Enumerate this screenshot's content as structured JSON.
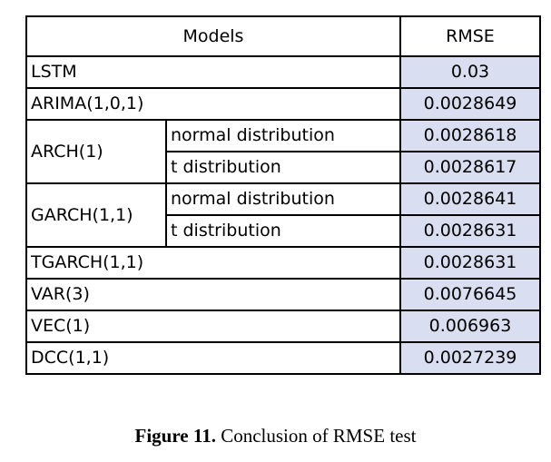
{
  "table": {
    "header": {
      "models": "Models",
      "rmse": "RMSE"
    },
    "rows": [
      {
        "model": "LSTM",
        "variant": "",
        "rmse": "0.03"
      },
      {
        "model": "ARIMA(1,0,1)",
        "variant": "",
        "rmse": "0.0028649"
      },
      {
        "model": "ARCH(1)",
        "variant": "normal distribution",
        "rmse": "0.0028618"
      },
      {
        "model": "",
        "variant": "t distribution",
        "rmse": "0.0028617"
      },
      {
        "model": "GARCH(1,1)",
        "variant": "normal distribution",
        "rmse": "0.0028641"
      },
      {
        "model": "",
        "variant": "t distribution",
        "rmse": "0.0028631"
      },
      {
        "model": "TGARCH(1,1)",
        "variant": "",
        "rmse": "0.0028631"
      },
      {
        "model": "VAR(3)",
        "variant": "",
        "rmse": "0.0076645"
      },
      {
        "model": "VEC(1)",
        "variant": "",
        "rmse": "0.006963"
      },
      {
        "model": "DCC(1,1)",
        "variant": "",
        "rmse": "0.0027239"
      }
    ]
  },
  "caption": {
    "label": "Figure 11.",
    "text": " Conclusion of RMSE test"
  }
}
